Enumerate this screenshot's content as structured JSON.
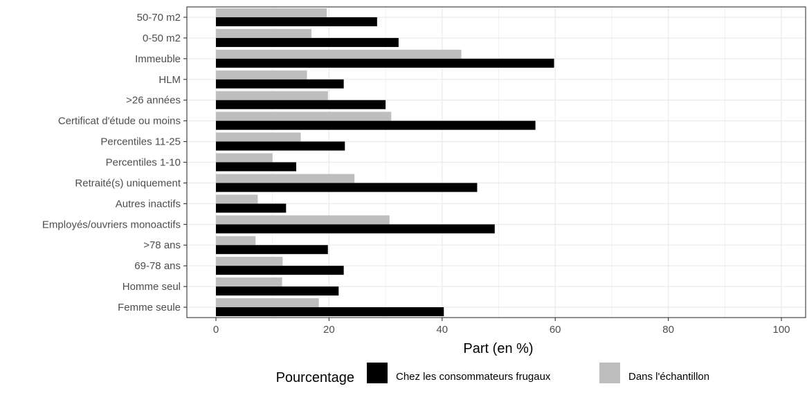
{
  "chart_data": {
    "type": "bar",
    "orientation": "horizontal",
    "categories": [
      "50-70 m2",
      "0-50 m2",
      "Immeuble",
      "HLM",
      ">26 années",
      "Certificat d'étude ou moins",
      "Percentiles 11-25",
      "Percentiles 1-10",
      "Retraité(s) uniquement",
      "Autres inactifs",
      "Employés/ouvriers monoactifs",
      ">78 ans",
      "69-78 ans",
      "Homme seul",
      "Femme seule"
    ],
    "series": [
      {
        "name": "Dans l'échantillon",
        "color": "#bebebe",
        "values": [
          19.6,
          16.9,
          43.4,
          16.1,
          19.8,
          31.0,
          15.0,
          10.0,
          24.5,
          7.4,
          30.7,
          7.0,
          11.8,
          11.7,
          18.2
        ]
      },
      {
        "name": "Chez les consommateurs frugaux",
        "color": "#000000",
        "values": [
          28.5,
          32.3,
          59.8,
          22.6,
          30.0,
          56.5,
          22.8,
          14.2,
          46.2,
          12.4,
          49.3,
          19.8,
          22.6,
          21.7,
          40.3
        ]
      }
    ],
    "xlabel": "Part (en %)",
    "ylabel": "",
    "xlim": [
      0,
      100
    ],
    "x_ticks": [
      0,
      20,
      40,
      60,
      80,
      100
    ],
    "grid": true,
    "legend": {
      "title": "Pourcentage",
      "position": "bottom",
      "entries": [
        "Chez les consommateurs frugaux",
        "Dans l'échantillon"
      ]
    }
  }
}
